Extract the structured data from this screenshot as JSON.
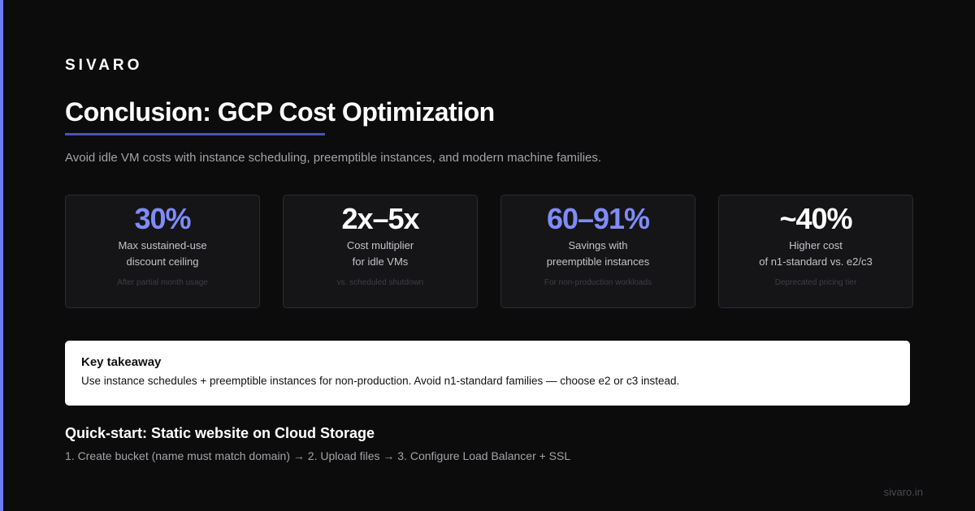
{
  "brand": "SIVARO",
  "title": "Conclusion: GCP Cost Optimization",
  "subtitle": "Avoid idle VM costs with instance scheduling, preemptible instances, and modern machine families.",
  "stats": [
    {
      "value": "30%",
      "label_lines": [
        "Max sustained-use",
        "discount ceiling"
      ],
      "note": "After partial month usage",
      "accent": true
    },
    {
      "value": "2x–5x",
      "label_lines": [
        "Cost multiplier",
        "for idle VMs"
      ],
      "note": "vs. scheduled shutdown",
      "accent": false
    },
    {
      "value": "60–91%",
      "label_lines": [
        "Savings with",
        "preemptible instances"
      ],
      "note": "For non-production workloads",
      "accent": true
    },
    {
      "value": "~40%",
      "label_lines": [
        "Higher cost",
        "of n1-standard vs. e2/c3"
      ],
      "note": "Deprecated pricing tier",
      "accent": false
    }
  ],
  "takeaway": {
    "title": "Key takeaway",
    "text": "Use instance schedules + preemptible instances for non-production. Avoid n1-standard families — choose e2 or c3 instead."
  },
  "quickstart": {
    "title": "Quick-start: Static website on Cloud Storage",
    "steps": "1. Create bucket (name must match domain) → 2. Upload files → 3. Configure Load Balancer + SSL"
  },
  "footer": "sivaro.in"
}
